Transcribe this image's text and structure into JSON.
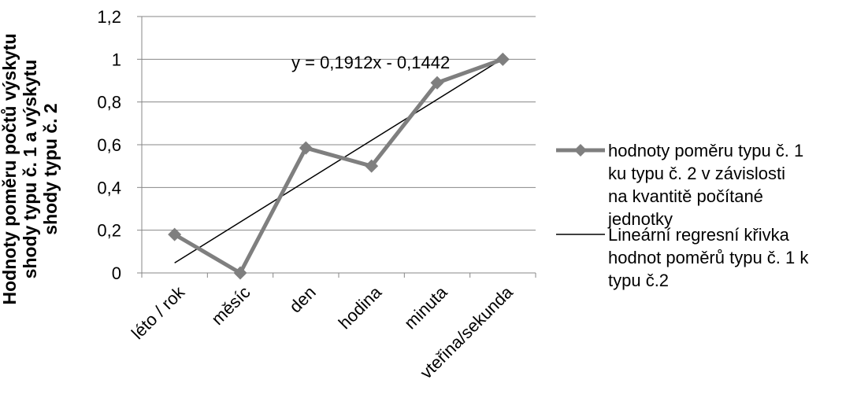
{
  "chart_data": {
    "type": "line",
    "categories": [
      "léto / rok",
      "měsíc",
      "den",
      "hodina",
      "minuta",
      "vteřina/sekunda"
    ],
    "series": [
      {
        "name": "hodnoty poměru typu č. 1 ku typu č. 2 v závislosti na kvantitě počítané jednotky",
        "values": [
          0.18,
          0.0,
          0.585,
          0.5,
          0.89,
          1.0
        ],
        "color": "#7f7f7f",
        "marker": "diamond"
      }
    ],
    "trendline": {
      "name": "Lineární regresní křivka hodnot poměrů typu č. 1 k typu č.2",
      "type": "linear",
      "slope": 0.1912,
      "intercept": -0.1442,
      "equation": "y = 0,1912x - 0,1442",
      "color": "#000000"
    },
    "ylabel": "Hodnoty poměru počtů výskytu shody typu č. 1 a výskytu shody typu č. 2",
    "ylim": [
      0,
      1.2
    ],
    "yticks": [
      {
        "value": 0,
        "label": "0"
      },
      {
        "value": 0.2,
        "label": "0,2"
      },
      {
        "value": 0.4,
        "label": "0,4"
      },
      {
        "value": 0.6,
        "label": "0,6"
      },
      {
        "value": 0.8,
        "label": "0,8"
      },
      {
        "value": 1.0,
        "label": "1"
      },
      {
        "value": 1.2,
        "label": "1,2"
      }
    ],
    "grid": "horizontal",
    "legend_position": "right"
  }
}
